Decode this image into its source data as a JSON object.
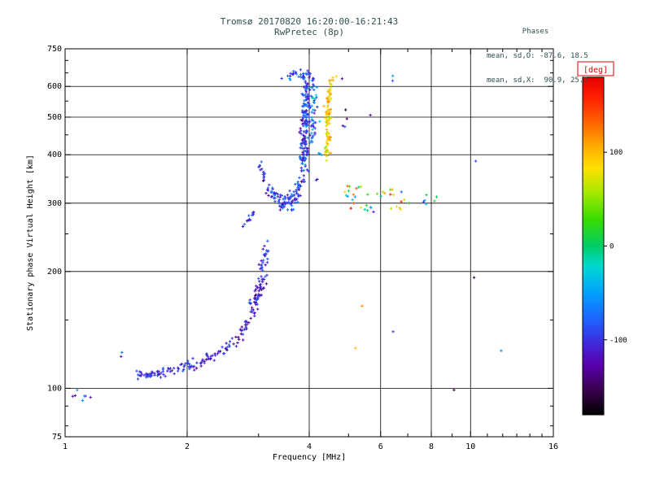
{
  "header": {
    "title_line1": "Tromsø 20170820 16:20:00-16:21:43",
    "title_line2": "RwPretec (8p)",
    "stats_title": "Phases",
    "stats_o": "mean, sd,O: -87.6, 18.5",
    "stats_x": "mean, sd,X:  90.9, 25.2"
  },
  "chart_data": {
    "type": "scatter",
    "title": "Tromsø 20170820 16:20:00-16:21:43",
    "subtitle": "RwPretec (8p)",
    "xlabel": "Frequency [MHz]",
    "ylabel": "Stationary phase Virtual Height [km]",
    "x_scale": "log",
    "y_scale": "log",
    "xlim": [
      1,
      16
    ],
    "ylim": [
      75,
      750
    ],
    "x_ticks": [
      1,
      2,
      4,
      6,
      8,
      10,
      16
    ],
    "x_minor_ticks": [
      3,
      5,
      7,
      9,
      11,
      12,
      13,
      14,
      15
    ],
    "y_ticks": [
      75,
      100,
      200,
      300,
      400,
      500,
      600,
      750
    ],
    "y_minor_ticks": [
      80,
      90,
      150,
      250,
      350,
      450,
      550,
      650,
      700
    ],
    "x_grid": [
      2,
      4,
      6,
      8,
      10
    ],
    "y_grid": [
      100,
      200,
      300,
      400,
      500,
      600
    ],
    "stats": {
      "o_mean": -87.6,
      "o_sd": 18.5,
      "x_mean": 90.9,
      "x_sd": 25.2
    },
    "colorbar": {
      "label": "[deg]",
      "min": -180,
      "max": 180,
      "ticks": [
        100,
        0,
        -100
      ],
      "stops": [
        [
          0.0,
          "#000000"
        ],
        [
          0.07,
          "#38004a"
        ],
        [
          0.15,
          "#5a00b0"
        ],
        [
          0.22,
          "#3a30e0"
        ],
        [
          0.28,
          "#2060ff"
        ],
        [
          0.36,
          "#00a0ff"
        ],
        [
          0.44,
          "#00d8d0"
        ],
        [
          0.5,
          "#00cc66"
        ],
        [
          0.58,
          "#3add00"
        ],
        [
          0.66,
          "#a8e800"
        ],
        [
          0.73,
          "#ffe000"
        ],
        [
          0.79,
          "#ffb000"
        ],
        [
          0.87,
          "#ff6000"
        ],
        [
          0.94,
          "#ff2000"
        ],
        [
          1.0,
          "#e60000"
        ]
      ]
    },
    "marker": "plus",
    "clusters": [
      {
        "f0": 1.03,
        "h0": 95,
        "f1": 1.17,
        "h1": 97,
        "n": 7,
        "jf": 0.005,
        "jh": 0.008,
        "ph": -95,
        "ps": 25
      },
      {
        "f0": 1.36,
        "h0": 121,
        "f1": 1.39,
        "h1": 123,
        "n": 2,
        "jf": 0.003,
        "jh": 0.004,
        "ph": -85,
        "ps": 15
      },
      {
        "f0": 1.5,
        "h0": 108,
        "f1": 1.76,
        "h1": 110,
        "n": 42,
        "jf": 0.004,
        "jh": 0.005,
        "ph": -96,
        "ps": 15
      },
      {
        "f0": 1.78,
        "h0": 111,
        "f1": 2.08,
        "h1": 115,
        "n": 30,
        "jf": 0.004,
        "jh": 0.005,
        "ph": -101,
        "ps": 15
      },
      {
        "f0": 2.1,
        "h0": 116,
        "f1": 2.55,
        "h1": 127,
        "n": 36,
        "jf": 0.005,
        "jh": 0.006,
        "ph": -108,
        "ps": 18
      },
      {
        "f0": 2.55,
        "h0": 128,
        "f1": 2.85,
        "h1": 150,
        "n": 28,
        "jf": 0.004,
        "jh": 0.008,
        "ph": -110,
        "ps": 18
      },
      {
        "f0": 2.88,
        "h0": 155,
        "f1": 3.06,
        "h1": 192,
        "n": 60,
        "jf": 0.006,
        "jh": 0.013,
        "ph": -112,
        "ps": 20
      },
      {
        "f0": 3.05,
        "h0": 200,
        "f1": 3.16,
        "h1": 232,
        "n": 24,
        "jf": 0.004,
        "jh": 0.01,
        "ph": -100,
        "ps": 20
      },
      {
        "f0": 2.78,
        "h0": 268,
        "f1": 2.96,
        "h1": 288,
        "n": 13,
        "jf": 0.004,
        "jh": 0.006,
        "ph": -95,
        "ps": 20
      },
      {
        "f0": 3.0,
        "h0": 382,
        "f1": 3.13,
        "h1": 335,
        "n": 14,
        "jf": 0.003,
        "jh": 0.008,
        "ph": -108,
        "ps": 20
      },
      {
        "f0": 3.14,
        "h0": 332,
        "f1": 3.42,
        "h1": 300,
        "n": 36,
        "jf": 0.004,
        "jh": 0.008,
        "ph": -100,
        "ps": 20
      },
      {
        "f0": 3.42,
        "h0": 299,
        "f1": 3.72,
        "h1": 308,
        "n": 48,
        "jf": 0.005,
        "jh": 0.01,
        "ph": -92,
        "ps": 20
      },
      {
        "f0": 3.72,
        "h0": 312,
        "f1": 3.86,
        "h1": 355,
        "n": 30,
        "jf": 0.004,
        "jh": 0.01,
        "ph": -90,
        "ps": 20
      },
      {
        "f0": 3.88,
        "h0": 372,
        "f1": 3.94,
        "h1": 640,
        "n": 175,
        "jf": 0.005,
        "jh": 0.012,
        "ph": -93,
        "ps": 18
      },
      {
        "f0": 4.06,
        "h0": 420,
        "f1": 4.12,
        "h1": 630,
        "n": 48,
        "jf": 0.004,
        "jh": 0.012,
        "ph": -70,
        "ps": 25
      },
      {
        "f0": 3.58,
        "h0": 640,
        "f1": 3.92,
        "h1": 655,
        "n": 22,
        "jf": 0.008,
        "jh": 0.006,
        "ph": -85,
        "ps": 20
      },
      {
        "f0": 4.18,
        "h0": 320,
        "f1": 4.3,
        "h1": 480,
        "n": 6,
        "jf": 0.004,
        "jh": 0.02,
        "ph": -60,
        "ps": 30
      },
      {
        "f0": 4.42,
        "h0": 390,
        "f1": 4.48,
        "h1": 600,
        "n": 88,
        "jf": 0.004,
        "jh": 0.012,
        "ph": 92,
        "ps": 18
      },
      {
        "f0": 4.45,
        "h0": 612,
        "f1": 4.6,
        "h1": 640,
        "n": 5,
        "jf": 0.006,
        "jh": 0.006,
        "ph": 96,
        "ps": 20
      },
      {
        "f0": 4.95,
        "h0": 330,
        "f1": 5.6,
        "h1": 290,
        "n": 22,
        "jf": 0.01,
        "jh": 0.013,
        "ph": 35,
        "ps": 65
      },
      {
        "f0": 6.0,
        "h0": 322,
        "f1": 6.9,
        "h1": 295,
        "n": 16,
        "jf": 0.012,
        "jh": 0.013,
        "ph": 60,
        "ps": 75
      },
      {
        "f0": 7.4,
        "h0": 312,
        "f1": 8.2,
        "h1": 300,
        "n": 6,
        "jf": 0.01,
        "jh": 0.01,
        "ph": -20,
        "ps": 80
      },
      {
        "f0": 4.8,
        "h0": 470,
        "f1": 5.0,
        "h1": 515,
        "n": 4,
        "jf": 0.004,
        "jh": 0.01,
        "ph": -120,
        "ps": 25
      },
      {
        "f0": 6.3,
        "h0": 618,
        "f1": 6.5,
        "h1": 638,
        "n": 2,
        "jf": 0.004,
        "jh": 0.006,
        "ph": -80,
        "ps": 20
      },
      {
        "f0": 5.2,
        "h0": 127,
        "f1": 5.2,
        "h1": 127,
        "n": 1,
        "jf": 0,
        "jh": 0,
        "ph": 100,
        "ps": 0
      },
      {
        "f0": 5.4,
        "h0": 163,
        "f1": 5.4,
        "h1": 163,
        "n": 1,
        "jf": 0,
        "jh": 0,
        "ph": 120,
        "ps": 0
      },
      {
        "f0": 6.44,
        "h0": 140,
        "f1": 6.44,
        "h1": 140,
        "n": 1,
        "jf": 0,
        "jh": 0,
        "ph": -90,
        "ps": 0
      },
      {
        "f0": 10.3,
        "h0": 385,
        "f1": 10.3,
        "h1": 385,
        "n": 1,
        "jf": 0,
        "jh": 0,
        "ph": -90,
        "ps": 0
      },
      {
        "f0": 10.2,
        "h0": 193,
        "f1": 10.2,
        "h1": 193,
        "n": 1,
        "jf": 0,
        "jh": 0,
        "ph": -150,
        "ps": 0
      },
      {
        "f0": 11.9,
        "h0": 125,
        "f1": 11.9,
        "h1": 125,
        "n": 1,
        "jf": 0,
        "jh": 0,
        "ph": -60,
        "ps": 0
      },
      {
        "f0": 9.1,
        "h0": 99,
        "f1": 9.1,
        "h1": 99,
        "n": 1,
        "jf": 0,
        "jh": 0,
        "ph": -150,
        "ps": 0
      },
      {
        "f0": 5.66,
        "h0": 506,
        "f1": 5.66,
        "h1": 506,
        "n": 1,
        "jf": 0,
        "jh": 0,
        "ph": -130,
        "ps": 0
      },
      {
        "f0": 4.82,
        "h0": 628,
        "f1": 4.82,
        "h1": 628,
        "n": 1,
        "jf": 0,
        "jh": 0,
        "ph": -130,
        "ps": 0
      }
    ]
  }
}
